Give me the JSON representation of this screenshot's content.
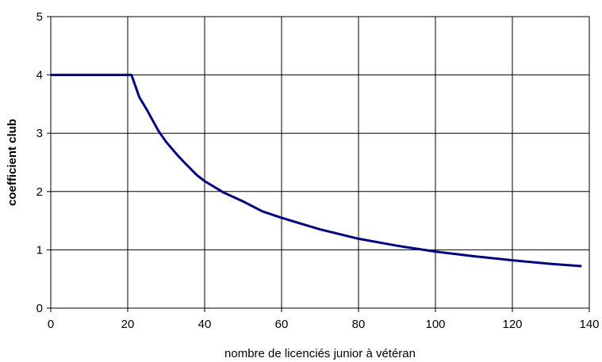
{
  "chart_data": {
    "type": "line",
    "title": "",
    "xlabel": "nombre de licenciés junior à vétéran",
    "ylabel": "coefficient club",
    "xlim": [
      0,
      140
    ],
    "ylim": [
      0,
      5
    ],
    "xticks": [
      0,
      20,
      40,
      60,
      80,
      100,
      120,
      140
    ],
    "yticks": [
      0,
      1,
      2,
      3,
      4,
      5
    ],
    "grid": true,
    "legend": "none",
    "series": [
      {
        "color": "#000080",
        "x": [
          0,
          20,
          21,
          23,
          25,
          28,
          30,
          33,
          35,
          38,
          40,
          45,
          50,
          55,
          60,
          65,
          70,
          80,
          90,
          100,
          110,
          120,
          130,
          138
        ],
        "y": [
          4.0,
          4.0,
          4.0,
          3.62,
          3.4,
          3.04,
          2.85,
          2.62,
          2.48,
          2.28,
          2.18,
          1.98,
          1.83,
          1.66,
          1.55,
          1.45,
          1.35,
          1.19,
          1.07,
          0.97,
          0.89,
          0.82,
          0.76,
          0.72
        ]
      }
    ]
  }
}
